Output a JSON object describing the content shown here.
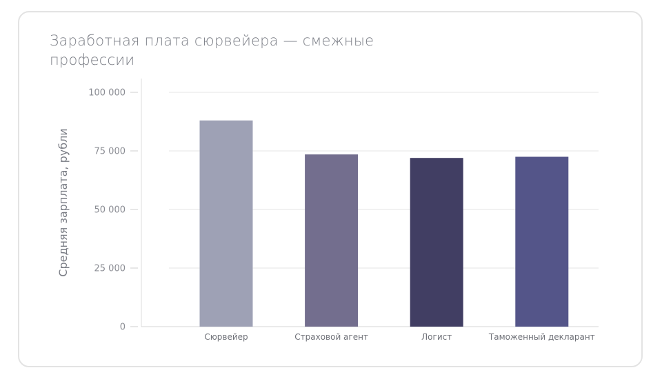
{
  "chart_data": {
    "type": "bar",
    "title": "Заработная плата сюрвейера — смежные профессии",
    "xlabel": "",
    "ylabel": "Средняя зарплата, рубли",
    "categories": [
      "Сюрвейер",
      "Страховой агент",
      "Логист",
      "Таможенный декларант"
    ],
    "values": [
      88000,
      73500,
      72000,
      72500
    ],
    "colors": [
      "#9ea1b5",
      "#736e8e",
      "#413e63",
      "#545589"
    ],
    "ylim": [
      0,
      100000
    ],
    "yticks": [
      0,
      25000,
      50000,
      75000,
      100000
    ],
    "ytick_labels": [
      "0",
      "25 000",
      "50 000",
      "75 000",
      "100 000"
    ],
    "grid": true,
    "legend": "none"
  }
}
